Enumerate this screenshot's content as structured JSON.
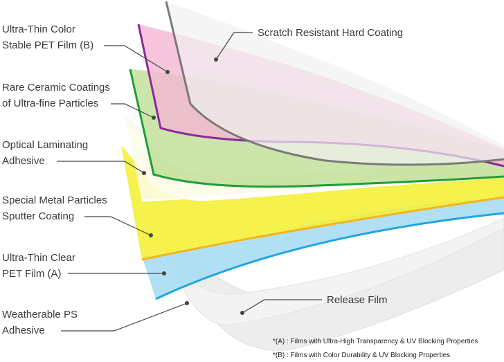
{
  "labels": {
    "pet_b": [
      "Ultra-Thin Color",
      "Stable PET Film (B)"
    ],
    "ceramic": [
      "Rare Ceramic Coatings",
      "of Ultra-fine Particles"
    ],
    "adhesive": [
      "Optical Laminating",
      "Adhesive"
    ],
    "metal": [
      "Special Metal Particles",
      "Sputter Coating"
    ],
    "pet_a": [
      "Ultra-Thin Clear",
      "PET Film (A)"
    ],
    "weather": [
      "Weatherable PS",
      "Adhesive"
    ],
    "scratch": "Scratch Resistant Hard Coating",
    "release": "Release Film"
  },
  "notes": {
    "a": "*(A) : Films with Ultra-High Transparency & UV Blocking Properties",
    "b": "*(B) : Films with Color Durability & UV Blocking Properties"
  },
  "colors": {
    "hard_coat": "#7a7a7a",
    "pet_b": "#f4b6d2",
    "ceramic_edge": "#8b2a9b",
    "ceramic_fill": "#b9dc8f",
    "adhesive_edge": "#1e9e3a",
    "metal_fill": "#f4f03a",
    "metal_edge": "#f2b51b",
    "pet_a_fill": "#a9dcf3",
    "pet_a_edge": "#1ea6dd",
    "release": "#e6e6e6"
  }
}
